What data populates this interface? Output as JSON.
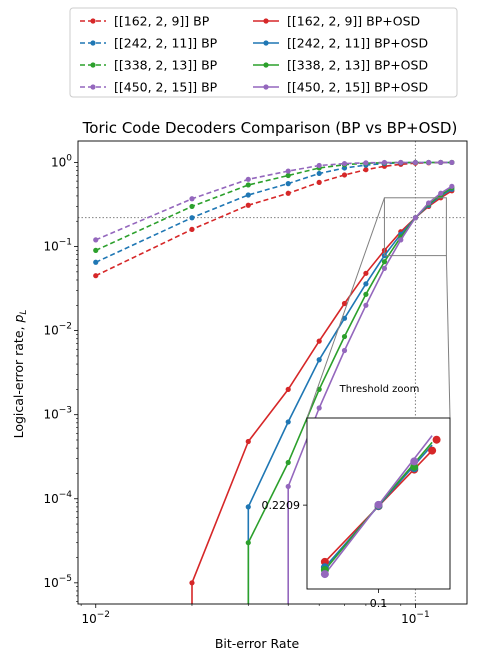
{
  "chart_data": {
    "type": "line",
    "title": "Toric Code Decoders Comparison (BP vs BP+OSD)",
    "xlabel": "Bit-error Rate",
    "ylabel": "Logical-error rate, p_L",
    "xscale": "log",
    "yscale": "log",
    "xlim": [
      0.0088,
      0.145
    ],
    "ylim": [
      5.6e-06,
      1.8
    ],
    "x_ticks": [
      {
        "value": 0.01,
        "label": "10^-2"
      },
      {
        "value": 0.1,
        "label": "10^-1"
      }
    ],
    "y_ticks": [
      {
        "value": 1e-05,
        "label": "10^-5"
      },
      {
        "value": 0.0001,
        "label": "10^-4"
      },
      {
        "value": 0.001,
        "label": "10^-3"
      },
      {
        "value": 0.01,
        "label": "10^-2"
      },
      {
        "value": 0.1,
        "label": "10^-1"
      },
      {
        "value": 1,
        "label": "10^0"
      }
    ],
    "grid": false,
    "legend_position": "top",
    "threshold": {
      "x": 0.1,
      "y": 0.2209
    },
    "series": [
      {
        "name": "[[162, 2, 9]] BP",
        "color": "#d62728",
        "style": "dashed",
        "points": [
          [
            0.01,
            0.045
          ],
          [
            0.02,
            0.16
          ],
          [
            0.03,
            0.31
          ],
          [
            0.04,
            0.43
          ],
          [
            0.05,
            0.58
          ],
          [
            0.06,
            0.71
          ],
          [
            0.07,
            0.82
          ],
          [
            0.08,
            0.9
          ],
          [
            0.09,
            0.95
          ],
          [
            0.1,
            0.98
          ],
          [
            0.11,
            0.99
          ],
          [
            0.12,
            1.0
          ],
          [
            0.13,
            1.0
          ]
        ]
      },
      {
        "name": "[[242, 2, 11]] BP",
        "color": "#1f77b4",
        "style": "dashed",
        "points": [
          [
            0.01,
            0.065
          ],
          [
            0.02,
            0.22
          ],
          [
            0.03,
            0.41
          ],
          [
            0.04,
            0.56
          ],
          [
            0.05,
            0.74
          ],
          [
            0.06,
            0.86
          ],
          [
            0.07,
            0.93
          ],
          [
            0.08,
            0.97
          ],
          [
            0.09,
            0.99
          ],
          [
            0.1,
            1.0
          ],
          [
            0.11,
            1.0
          ],
          [
            0.12,
            1.0
          ],
          [
            0.13,
            1.0
          ]
        ]
      },
      {
        "name": "[[338, 2, 13]] BP",
        "color": "#2ca02c",
        "style": "dashed",
        "points": [
          [
            0.01,
            0.09
          ],
          [
            0.02,
            0.3
          ],
          [
            0.03,
            0.54
          ],
          [
            0.04,
            0.7
          ],
          [
            0.05,
            0.86
          ],
          [
            0.06,
            0.94
          ],
          [
            0.07,
            0.98
          ],
          [
            0.08,
            0.99
          ],
          [
            0.09,
            1.0
          ],
          [
            0.1,
            1.0
          ],
          [
            0.11,
            1.0
          ],
          [
            0.12,
            1.0
          ],
          [
            0.13,
            1.0
          ]
        ]
      },
      {
        "name": "[[450, 2, 15]] BP",
        "color": "#9467bd",
        "style": "dashed",
        "points": [
          [
            0.01,
            0.12
          ],
          [
            0.02,
            0.37
          ],
          [
            0.03,
            0.63
          ],
          [
            0.04,
            0.79
          ],
          [
            0.05,
            0.92
          ],
          [
            0.06,
            0.97
          ],
          [
            0.07,
            0.99
          ],
          [
            0.08,
            1.0
          ],
          [
            0.09,
            1.0
          ],
          [
            0.1,
            1.0
          ],
          [
            0.11,
            1.0
          ],
          [
            0.12,
            1.0
          ],
          [
            0.13,
            1.0
          ]
        ]
      },
      {
        "name": "[[162, 2, 9]] BP+OSD",
        "color": "#d62728",
        "style": "solid",
        "points": [
          [
            0.02,
            1e-05
          ],
          [
            0.03,
            0.00048
          ],
          [
            0.04,
            0.002
          ],
          [
            0.05,
            0.0075
          ],
          [
            0.06,
            0.021
          ],
          [
            0.07,
            0.048
          ],
          [
            0.08,
            0.09
          ],
          [
            0.09,
            0.15
          ],
          [
            0.1,
            0.22
          ],
          [
            0.11,
            0.3
          ],
          [
            0.12,
            0.38
          ],
          [
            0.13,
            0.46
          ]
        ]
      },
      {
        "name": "[[242, 2, 11]] BP+OSD",
        "color": "#1f77b4",
        "style": "solid",
        "points": [
          [
            0.03,
            8e-05
          ],
          [
            0.04,
            0.00082
          ],
          [
            0.05,
            0.0045
          ],
          [
            0.06,
            0.014
          ],
          [
            0.07,
            0.036
          ],
          [
            0.08,
            0.078
          ],
          [
            0.09,
            0.14
          ],
          [
            0.1,
            0.22
          ],
          [
            0.11,
            0.31
          ],
          [
            0.12,
            0.4
          ],
          [
            0.13,
            0.48
          ]
        ]
      },
      {
        "name": "[[338, 2, 13]] BP+OSD",
        "color": "#2ca02c",
        "style": "solid",
        "points": [
          [
            0.03,
            3e-05
          ],
          [
            0.04,
            0.00027
          ],
          [
            0.05,
            0.002
          ],
          [
            0.06,
            0.0085
          ],
          [
            0.07,
            0.027
          ],
          [
            0.08,
            0.066
          ],
          [
            0.09,
            0.13
          ],
          [
            0.1,
            0.22
          ],
          [
            0.11,
            0.32
          ],
          [
            0.12,
            0.41
          ],
          [
            0.13,
            0.5
          ]
        ]
      },
      {
        "name": "[[450, 2, 15]] BP+OSD",
        "color": "#9467bd",
        "style": "solid",
        "points": [
          [
            0.04,
            0.00014
          ],
          [
            0.05,
            0.0012
          ],
          [
            0.06,
            0.0058
          ],
          [
            0.07,
            0.02
          ],
          [
            0.08,
            0.055
          ],
          [
            0.09,
            0.12
          ],
          [
            0.1,
            0.22
          ],
          [
            0.11,
            0.33
          ],
          [
            0.12,
            0.43
          ],
          [
            0.13,
            0.52
          ]
        ]
      }
    ],
    "inset": {
      "title": "Threshold zoom",
      "xlim": [
        0.092,
        0.108
      ],
      "ylim": [
        0.19,
        0.253
      ],
      "x_tick": {
        "value": 0.1,
        "label": "0.1"
      },
      "y_tick": {
        "value": 0.2209,
        "label": "0.2209"
      },
      "points": {
        "[[162, 2, 9]] BP+OSD": [
          [
            0.094,
            0.2
          ],
          [
            0.1,
            0.2205
          ],
          [
            0.106,
            0.241
          ]
        ],
        "[[242, 2, 11]] BP+OSD": [
          [
            0.094,
            0.198
          ],
          [
            0.1,
            0.2206
          ],
          [
            0.106,
            0.243
          ]
        ],
        "[[338, 2, 13]] BP+OSD": [
          [
            0.094,
            0.197
          ],
          [
            0.1,
            0.2209
          ],
          [
            0.106,
            0.244
          ]
        ],
        "[[450, 2, 15]] BP+OSD": [
          [
            0.094,
            0.1955
          ],
          [
            0.1,
            0.221
          ],
          [
            0.106,
            0.2465
          ]
        ]
      },
      "marker_points": {
        "[[162, 2, 9]] BP+OSD": [
          [
            0.094,
            0.2
          ],
          [
            0.1,
            0.2205
          ],
          [
            0.104,
            0.234
          ],
          [
            0.106,
            0.241
          ],
          [
            0.1065,
            0.245
          ]
        ],
        "[[242, 2, 11]] BP+OSD": [
          [
            0.094,
            0.198
          ],
          [
            0.1,
            0.2206
          ],
          [
            0.104,
            0.2345
          ]
        ],
        "[[338, 2, 13]] BP+OSD": [
          [
            0.094,
            0.197
          ],
          [
            0.1,
            0.2209
          ],
          [
            0.104,
            0.235
          ]
        ],
        "[[450, 2, 15]] BP+OSD": [
          [
            0.094,
            0.1955
          ],
          [
            0.1,
            0.221
          ],
          [
            0.104,
            0.237
          ]
        ]
      }
    }
  }
}
